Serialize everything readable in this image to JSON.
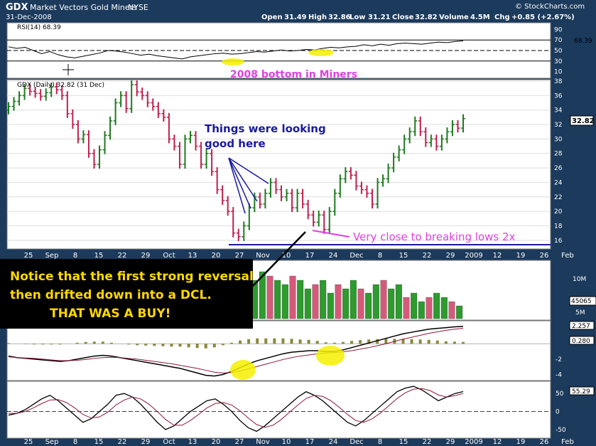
{
  "header": {
    "symbol": "GDX",
    "name": "Market Vectors Gold Miners",
    "exchange": "NYSE",
    "date": "31-Dec-2008",
    "open_label": "Open",
    "open": "31.49",
    "high_label": "High",
    "high": "32.86",
    "low_label": "Low",
    "low": "31.21",
    "close_label": "Close",
    "close": "32.82",
    "volume_label": "Volume",
    "volume": "4.5M",
    "chg_label": "Chg",
    "chg": "+0.85 (+2.67%)",
    "credit": "© StockCharts.com"
  },
  "chart_data": [
    {
      "type": "line",
      "panel": "rsi",
      "title": "RSI(14) 68.39",
      "ylim": [
        0,
        100
      ],
      "yticks": [
        10,
        30,
        50,
        70,
        90
      ],
      "reference_lines": [
        30,
        50,
        70
      ],
      "last_value": 68.39,
      "values": [
        57,
        54,
        56,
        50,
        44,
        48,
        42,
        38,
        36,
        39,
        42,
        45,
        50,
        49,
        47,
        44,
        41,
        43,
        40,
        38,
        36,
        34,
        38,
        40,
        42,
        44,
        45,
        43,
        44,
        46,
        48,
        47,
        49,
        51,
        49,
        50,
        52,
        51,
        54,
        56,
        55,
        57,
        58,
        61,
        59,
        62,
        60,
        63,
        64,
        63,
        62,
        64,
        66,
        65,
        67,
        68.39
      ],
      "annotations": [
        "2008 bottom in Miners"
      ],
      "highlight_color": "#f5f000",
      "annotation_color": "#e040e0"
    },
    {
      "type": "ohlc",
      "panel": "price",
      "title": "GDX (Daily) 32.82 (31 Dec)",
      "ylim": [
        15,
        38
      ],
      "yticks": [
        16,
        18,
        20,
        22,
        24,
        26,
        28,
        30,
        32,
        34,
        36,
        38
      ],
      "last_price": 32.82,
      "x_labels": [
        "25",
        "Sep",
        "8",
        "15",
        "22",
        "29",
        "Oct",
        "13",
        "20",
        "27",
        "Nov",
        "10",
        "17",
        "24",
        "Dec",
        "8",
        "15",
        "22",
        "29",
        "2009",
        "12",
        "19",
        "26",
        "Feb"
      ],
      "close": [
        34.5,
        35.2,
        36.0,
        37.0,
        36.6,
        36.3,
        35.9,
        36.4,
        37.2,
        36.8,
        36.0,
        33.5,
        32.0,
        30.0,
        30.6,
        28.0,
        26.5,
        28.5,
        30.5,
        32.5,
        35.0,
        36.0,
        34.2,
        37.5,
        36.5,
        36.0,
        35.0,
        34.5,
        33.5,
        33.0,
        30.0,
        29.0,
        26.5,
        30.0,
        30.5,
        29.0,
        26.5,
        28.0,
        25.5,
        23.0,
        21.5,
        20.0,
        17.0,
        16.5,
        18.0,
        20.5,
        22.0,
        21.0,
        22.5,
        24.0,
        23.0,
        22.0,
        22.5,
        20.5,
        22.5,
        21.0,
        19.5,
        18.5,
        19.5,
        17.5,
        20.0,
        22.5,
        24.5,
        25.5,
        25.0,
        23.5,
        23.0,
        22.5,
        21.0,
        24.0,
        24.5,
        26.0,
        27.5,
        28.5,
        30.0,
        31.0,
        32.5,
        31.0,
        29.5,
        30.0,
        29.0,
        30.0,
        31.0,
        32.0,
        31.5,
        32.82
      ],
      "bar_up_color": "#1f7a1f",
      "bar_down_color": "#c0204e",
      "support_line_level": 15.7,
      "annotations": {
        "looking_good": "Things were looking good here",
        "breaking_lows": "Very close to breaking lows 2x"
      },
      "annotation_colors": {
        "looking_good": "#1a1aa0",
        "breaking_lows": "#e040e0"
      }
    },
    {
      "type": "bar",
      "panel": "volume",
      "last_value_label": "45065",
      "ytick_labels": [
        "10M",
        "5M"
      ],
      "values": [
        2,
        3,
        2,
        3,
        4,
        3,
        4,
        5,
        3,
        4,
        5,
        6,
        5,
        7,
        6,
        7,
        8,
        6,
        5,
        6,
        7,
        9,
        10,
        7,
        11,
        8,
        10,
        9,
        11,
        12,
        8,
        10,
        9,
        11,
        10,
        9,
        8,
        10,
        9,
        7,
        8,
        9,
        6,
        8,
        7,
        9,
        7,
        6,
        8,
        9,
        7,
        8,
        5,
        6,
        4,
        5,
        6,
        5,
        4,
        3
      ],
      "callout": "Notice that the first strong reversal then drifted down into a DCL.",
      "callout_emphasis": "THAT WAS A BUY!",
      "callout_color": "#ffd800"
    },
    {
      "type": "line",
      "panel": "macd",
      "labels": [
        "2.257",
        "0.280"
      ],
      "yticks": [
        -2,
        -4
      ],
      "macd": [
        -1.6,
        -1.8,
        -1.9,
        -2.0,
        -2.1,
        -2.2,
        -2.3,
        -2.2,
        -2.0,
        -1.8,
        -1.6,
        -1.5,
        -1.6,
        -1.8,
        -2.0,
        -2.2,
        -2.4,
        -2.6,
        -2.8,
        -3.0,
        -3.2,
        -3.5,
        -3.8,
        -4.1,
        -4.2,
        -4.0,
        -3.6,
        -3.1,
        -2.6,
        -2.2,
        -1.9,
        -1.6,
        -1.3,
        -1.1,
        -1.0,
        -0.9,
        -0.9,
        -1.0,
        -1.0,
        -0.8,
        -0.5,
        -0.2,
        0.1,
        0.4,
        0.7,
        1.0,
        1.3,
        1.5,
        1.7,
        1.9,
        2.0,
        2.1,
        2.2,
        2.257
      ],
      "signal": [
        -1.7,
        -1.8,
        -1.85,
        -1.9,
        -2.0,
        -2.1,
        -2.2,
        -2.2,
        -2.15,
        -2.05,
        -1.9,
        -1.8,
        -1.75,
        -1.8,
        -1.9,
        -2.0,
        -2.15,
        -2.3,
        -2.45,
        -2.6,
        -2.8,
        -3.0,
        -3.2,
        -3.45,
        -3.7,
        -3.8,
        -3.75,
        -3.55,
        -3.25,
        -2.95,
        -2.65,
        -2.35,
        -2.05,
        -1.8,
        -1.6,
        -1.45,
        -1.3,
        -1.2,
        -1.15,
        -1.05,
        -0.9,
        -0.7,
        -0.5,
        -0.25,
        0.0,
        0.3,
        0.6,
        0.85,
        1.1,
        1.35,
        1.55,
        1.75,
        1.9,
        2.0
      ]
    },
    {
      "type": "line",
      "panel": "oscillator",
      "labels": [
        "55.29"
      ],
      "yticks": [
        50,
        0,
        -50
      ],
      "fast": [
        -10,
        -5,
        5,
        20,
        35,
        45,
        30,
        10,
        -10,
        -30,
        -20,
        0,
        20,
        45,
        50,
        40,
        20,
        -5,
        -30,
        -50,
        -40,
        -20,
        0,
        15,
        30,
        35,
        20,
        0,
        -25,
        -45,
        -55,
        -40,
        -20,
        0,
        20,
        40,
        55,
        45,
        30,
        10,
        -10,
        -30,
        -40,
        -25,
        -5,
        15,
        35,
        55,
        65,
        70,
        60,
        45,
        30,
        40,
        50,
        55.29
      ],
      "slow": [
        -5,
        -5,
        0,
        10,
        22,
        32,
        33,
        25,
        10,
        -8,
        -18,
        -15,
        -2,
        18,
        32,
        40,
        35,
        20,
        0,
        -22,
        -38,
        -38,
        -25,
        -8,
        10,
        22,
        25,
        18,
        2,
        -18,
        -36,
        -44,
        -38,
        -22,
        -2,
        18,
        36,
        45,
        42,
        30,
        12,
        -8,
        -25,
        -30,
        -20,
        -4,
        16,
        36,
        52,
        62,
        64,
        58,
        46,
        40,
        44,
        50
      ]
    }
  ]
}
